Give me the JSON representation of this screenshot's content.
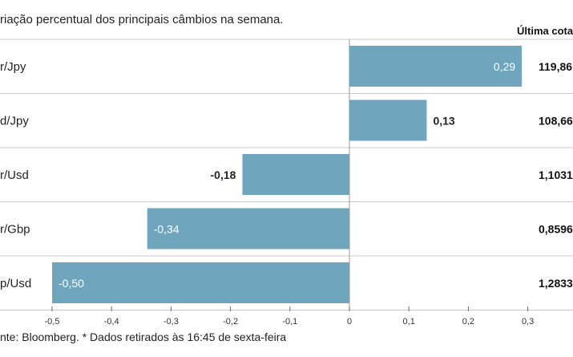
{
  "header": {
    "subtitle": "riação percentual dos principais câmbios na semana.",
    "last_quote_label": "Última cotaç"
  },
  "footer": {
    "text": "nte: Bloomberg.  * Dados retirados às 16:45 de sexta-feira"
  },
  "chart_data": {
    "type": "bar",
    "orientation": "horizontal",
    "categories": [
      "r/Jpy",
      "d/Jpy",
      "r/Usd",
      "r/Gbp",
      "p/Usd"
    ],
    "values": [
      0.29,
      0.13,
      -0.18,
      -0.34,
      -0.5
    ],
    "value_labels": [
      "0,29",
      "0,13",
      "-0,18",
      "-0,34",
      "-0,50"
    ],
    "last_quotes": [
      "119,86",
      "108,66",
      "1,1031",
      "0,8596",
      "1,2833"
    ],
    "xlim": [
      -0.5,
      0.3
    ],
    "xticks": [
      -0.5,
      -0.4,
      -0.3,
      -0.2,
      -0.1,
      0,
      0.1,
      0.2,
      0.3
    ],
    "xtick_labels": [
      "-0,5",
      "-0,4",
      "-0,3",
      "-0,2",
      "-0,1",
      "0",
      "0,1",
      "0,2",
      "0,3"
    ],
    "bar_color": "#6fa5bd",
    "grid": false,
    "legend": "none"
  }
}
